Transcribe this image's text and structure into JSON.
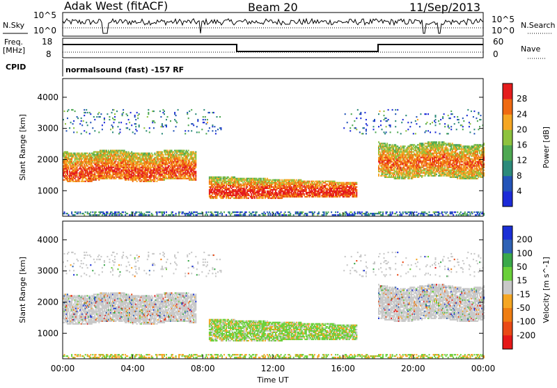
{
  "header": {
    "station": "Adak West (fitACF)",
    "beam": "Beam 20",
    "date": "11/Sep/2013"
  },
  "panels": {
    "nsky": {
      "label": "N.Sky",
      "left_ticks": [
        "10^5",
        "10^0"
      ],
      "right_ticks": [
        "10^5",
        "10^0"
      ],
      "right_label": "N.Search"
    },
    "freq": {
      "label_line1": "Freq.",
      "label_line2": "[MHz]",
      "left_ticks": [
        "18",
        "8"
      ],
      "right_ticks": [
        "60",
        "0"
      ],
      "right_label": "Nave"
    },
    "cpid": {
      "label": "CPID",
      "text": "normalsound (fast) -157 RF"
    }
  },
  "chart_data": [
    {
      "type": "heatmap",
      "title": "",
      "xlabel": "Time UT",
      "ylabel": "Slant Range [km]",
      "x_ticks": [
        "00:00",
        "04:00",
        "08:00",
        "12:00",
        "16:00",
        "20:00",
        "00:00"
      ],
      "xlim_hours": [
        0,
        24
      ],
      "y_ticks": [
        1000,
        2000,
        3000,
        4000
      ],
      "ylim": [
        180,
        4600
      ],
      "colorbar": {
        "label": "Power [dB]",
        "ticks": [
          4,
          8,
          12,
          16,
          20,
          24,
          28
        ],
        "colors": [
          "#1c2bd8",
          "#2354b8",
          "#2c8a7a",
          "#4ea852",
          "#8ec23e",
          "#f5a623",
          "#ef6a12",
          "#e51d1d"
        ]
      },
      "regions": [
        {
          "name": "band",
          "t": [
            0,
            7.6
          ],
          "range": [
            1300,
            2250
          ],
          "level": "mid-high"
        },
        {
          "name": "core",
          "t": [
            8.3,
            16.8
          ],
          "range": [
            700,
            1500
          ],
          "level": "high"
        },
        {
          "name": "return",
          "t": [
            18,
            24
          ],
          "range": [
            1400,
            2500
          ],
          "level": "mid-high"
        }
      ]
    },
    {
      "type": "heatmap",
      "title": "",
      "xlabel": "Time UT",
      "ylabel": "Slant Range [km]",
      "x_ticks": [
        "00:00",
        "04:00",
        "08:00",
        "12:00",
        "16:00",
        "20:00",
        "00:00"
      ],
      "xlim_hours": [
        0,
        24
      ],
      "y_ticks": [
        1000,
        2000,
        3000,
        4000
      ],
      "ylim": [
        180,
        4600
      ],
      "colorbar": {
        "label": "Velocity [m s^-1]",
        "ticks": [
          200,
          100,
          50,
          15,
          -15,
          -50,
          -100,
          -200
        ],
        "colors": [
          "#1a2fd6",
          "#2f62b5",
          "#3aa84a",
          "#6ad03a",
          "#c8c8c8",
          "#f5a623",
          "#ef7d12",
          "#ea4a16",
          "#e61818"
        ]
      }
    }
  ]
}
